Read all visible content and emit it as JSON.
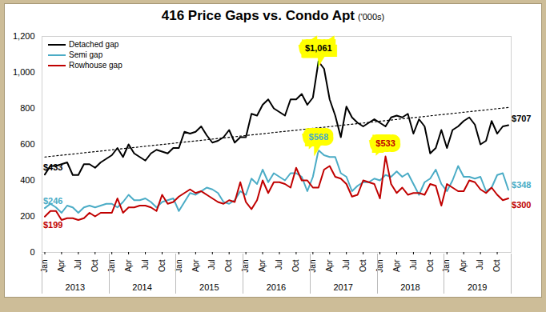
{
  "chart_data": {
    "type": "line",
    "title": "416 Price Gaps vs. Condo Apt",
    "subtitle": "('000s)",
    "categories": [
      "Jan",
      null,
      null,
      "Apr",
      null,
      null,
      "Jul",
      null,
      null,
      "Oct",
      null,
      null,
      "Jan",
      null,
      null,
      "Apr",
      null,
      null,
      "Jul",
      null,
      null,
      "Oct",
      null,
      null,
      "Jan",
      null,
      null,
      "Apr",
      null,
      null,
      "Jul",
      null,
      null,
      "Oct",
      null,
      null,
      "Jan",
      null,
      null,
      "Apr",
      null,
      null,
      "Jul",
      null,
      null,
      "Oct",
      null,
      null,
      "Jan",
      null,
      null,
      "Apr",
      null,
      null,
      "Jul",
      null,
      null,
      "Oct",
      null,
      null,
      "Jan",
      null,
      null,
      "Apr",
      null,
      null,
      "Jul",
      null,
      null,
      "Oct",
      null,
      null,
      "Jan",
      null,
      null,
      "Apr",
      null,
      null,
      "Jul",
      null,
      null,
      "Oct",
      null,
      null
    ],
    "year_labels": [
      "2013",
      "2014",
      "2015",
      "2016",
      "2017",
      "2018",
      "2019"
    ],
    "ylim": [
      0,
      1200
    ],
    "yticks": [
      0,
      200,
      400,
      600,
      800,
      {
        "value": 1000,
        "label": "1,000"
      },
      {
        "value": 1200,
        "label": "1,200"
      }
    ],
    "grid": false,
    "legend": "top-left",
    "data_labels": true,
    "trend": {
      "start": 530,
      "end": 805,
      "color": "#000000",
      "line_style": "dotted"
    },
    "series": [
      {
        "name": "Detached gap",
        "color": "#000000",
        "values": [
          433,
          480,
          480,
          490,
          500,
          430,
          430,
          490,
          490,
          470,
          500,
          520,
          540,
          580,
          530,
          600,
          550,
          530,
          510,
          550,
          570,
          560,
          550,
          580,
          580,
          670,
          660,
          670,
          700,
          650,
          610,
          620,
          640,
          680,
          610,
          640,
          640,
          770,
          760,
          820,
          850,
          800,
          780,
          760,
          850,
          850,
          880,
          820,
          860,
          1061,
          1020,
          850,
          760,
          640,
          810,
          750,
          720,
          700,
          720,
          740,
          720,
          700,
          750,
          760,
          750,
          770,
          660,
          740,
          700,
          550,
          580,
          680,
          580,
          680,
          700,
          730,
          750,
          710,
          600,
          620,
          730,
          660,
          700,
          707
        ],
        "value_labels": [
          "$433",
          null,
          null,
          null,
          null,
          null,
          null,
          null,
          null,
          null,
          null,
          null,
          null,
          null,
          null,
          null,
          null,
          null,
          null,
          null,
          null,
          null,
          null,
          null,
          null,
          null,
          null,
          null,
          null,
          null,
          null,
          null,
          null,
          null,
          null,
          null,
          null,
          null,
          null,
          null,
          null,
          null,
          null,
          null,
          null,
          null,
          null,
          null,
          null,
          "$1,061",
          null,
          null,
          null,
          null,
          null,
          null,
          null,
          null,
          null,
          null,
          null,
          null,
          null,
          null,
          null,
          null,
          null,
          null,
          null,
          null,
          null,
          null,
          null,
          null,
          null,
          null,
          null,
          null,
          null,
          null,
          null,
          null,
          null,
          "$707"
        ]
      },
      {
        "name": "Semi gap",
        "color": "#4bacc6",
        "values": [
          246,
          270,
          250,
          220,
          260,
          250,
          220,
          250,
          260,
          250,
          260,
          270,
          270,
          250,
          280,
          320,
          290,
          290,
          300,
          280,
          250,
          280,
          290,
          300,
          230,
          280,
          330,
          320,
          340,
          360,
          350,
          330,
          280,
          270,
          290,
          340,
          320,
          410,
          380,
          460,
          390,
          440,
          420,
          400,
          440,
          440,
          420,
          340,
          420,
          568,
          540,
          530,
          530,
          440,
          420,
          340,
          370,
          390,
          390,
          410,
          400,
          430,
          420,
          450,
          420,
          440,
          380,
          320,
          390,
          410,
          460,
          380,
          340,
          400,
          480,
          420,
          420,
          410,
          420,
          340,
          360,
          430,
          440,
          348
        ],
        "value_labels": [
          "$246",
          null,
          null,
          null,
          null,
          null,
          null,
          null,
          null,
          null,
          null,
          null,
          null,
          null,
          null,
          null,
          null,
          null,
          null,
          null,
          null,
          null,
          null,
          null,
          null,
          null,
          null,
          null,
          null,
          null,
          null,
          null,
          null,
          null,
          null,
          null,
          null,
          null,
          null,
          null,
          null,
          null,
          null,
          null,
          null,
          null,
          null,
          null,
          null,
          "$568",
          null,
          null,
          null,
          null,
          null,
          null,
          null,
          null,
          null,
          null,
          null,
          null,
          null,
          null,
          null,
          null,
          null,
          null,
          null,
          null,
          null,
          null,
          null,
          null,
          null,
          null,
          null,
          null,
          null,
          null,
          null,
          null,
          null,
          "$348"
        ]
      },
      {
        "name": "Rowhouse gap",
        "color": "#c00000",
        "values": [
          199,
          230,
          230,
          180,
          190,
          190,
          180,
          190,
          220,
          200,
          220,
          220,
          220,
          300,
          220,
          250,
          250,
          260,
          260,
          250,
          230,
          320,
          270,
          280,
          310,
          330,
          350,
          330,
          340,
          320,
          300,
          280,
          270,
          290,
          280,
          390,
          280,
          240,
          290,
          400,
          330,
          390,
          390,
          380,
          360,
          470,
          400,
          400,
          360,
          360,
          460,
          480,
          420,
          410,
          380,
          310,
          320,
          400,
          390,
          380,
          300,
          533,
          380,
          330,
          360,
          320,
          330,
          330,
          320,
          380,
          370,
          260,
          380,
          360,
          340,
          340,
          400,
          390,
          350,
          330,
          360,
          320,
          290,
          300
        ],
        "value_labels": [
          "$199",
          null,
          null,
          null,
          null,
          null,
          null,
          null,
          null,
          null,
          null,
          null,
          null,
          null,
          null,
          null,
          null,
          null,
          null,
          null,
          null,
          null,
          null,
          null,
          null,
          null,
          null,
          null,
          null,
          null,
          null,
          null,
          null,
          null,
          null,
          null,
          null,
          null,
          null,
          null,
          null,
          null,
          null,
          null,
          null,
          null,
          null,
          null,
          null,
          null,
          null,
          null,
          null,
          null,
          null,
          null,
          null,
          null,
          null,
          null,
          null,
          "$533",
          null,
          null,
          null,
          null,
          null,
          null,
          null,
          null,
          null,
          null,
          null,
          null,
          null,
          null,
          null,
          null,
          null,
          null,
          null,
          null,
          null,
          "$300"
        ]
      }
    ]
  }
}
